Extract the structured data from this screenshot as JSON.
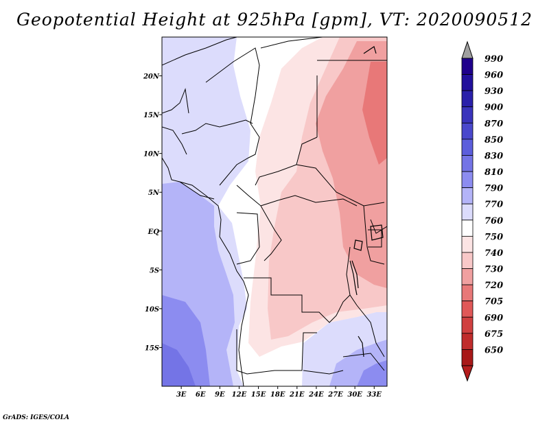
{
  "title": "Geopotential Height at 925hPa [gpm], VT: 2020090512",
  "credit": "GrADS: IGES/COLA",
  "map": {
    "lon_range": [
      0,
      35
    ],
    "lat_range": [
      -20,
      25
    ],
    "lon_ticks": [
      {
        "value": 3,
        "label": "3E"
      },
      {
        "value": 6,
        "label": "6E"
      },
      {
        "value": 9,
        "label": "9E"
      },
      {
        "value": 12,
        "label": "12E"
      },
      {
        "value": 15,
        "label": "15E"
      },
      {
        "value": 18,
        "label": "18E"
      },
      {
        "value": 21,
        "label": "21E"
      },
      {
        "value": 24,
        "label": "24E"
      },
      {
        "value": 27,
        "label": "27E"
      },
      {
        "value": 30,
        "label": "30E"
      },
      {
        "value": 33,
        "label": "33E"
      }
    ],
    "lat_ticks": [
      {
        "value": 20,
        "label": "20N"
      },
      {
        "value": 15,
        "label": "15N"
      },
      {
        "value": 10,
        "label": "10N"
      },
      {
        "value": 5,
        "label": "5N"
      },
      {
        "value": 0,
        "label": "EQ"
      },
      {
        "value": -5,
        "label": "5S"
      },
      {
        "value": -10,
        "label": "10S"
      },
      {
        "value": -15,
        "label": "15S"
      }
    ]
  },
  "colorbar": {
    "levels": [
      {
        "label": "990",
        "color": "#1f008c"
      },
      {
        "label": "960",
        "color": "#22109c"
      },
      {
        "label": "930",
        "color": "#2a20aa"
      },
      {
        "label": "900",
        "color": "#3a34bc"
      },
      {
        "label": "870",
        "color": "#4a48cc"
      },
      {
        "label": "850",
        "color": "#5c5edc"
      },
      {
        "label": "830",
        "color": "#7474e6"
      },
      {
        "label": "810",
        "color": "#8c8cf0"
      },
      {
        "label": "790",
        "color": "#b4b4f8"
      },
      {
        "label": "770",
        "color": "#dcdcfc"
      },
      {
        "label": "760",
        "color": "#ffffff"
      },
      {
        "label": "750",
        "color": "#fce4e4"
      },
      {
        "label": "740",
        "color": "#f8c8c8"
      },
      {
        "label": "730",
        "color": "#f0a0a0"
      },
      {
        "label": "720",
        "color": "#e87878"
      },
      {
        "label": "705",
        "color": "#e05858"
      },
      {
        "label": "690",
        "color": "#d04040"
      },
      {
        "label": "675",
        "color": "#c02c2c"
      },
      {
        "label": "650",
        "color": "#a81818"
      }
    ],
    "top_cap_color": "#a0a0a0",
    "bottom_cap_color": "#b41c1c"
  }
}
